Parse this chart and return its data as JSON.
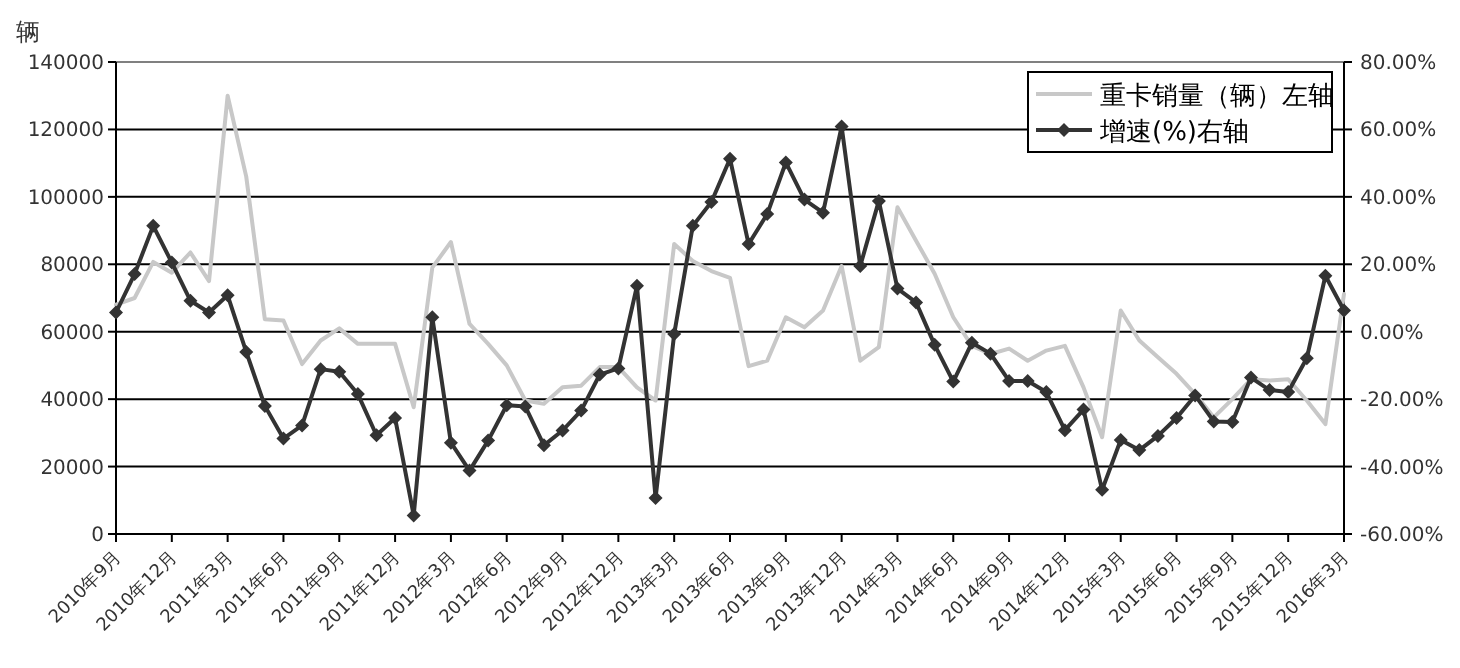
{
  "chart_data": {
    "type": "line",
    "ylabel": "辆",
    "categories": [
      "2010年9月",
      null,
      null,
      "2010年12月",
      null,
      null,
      "2011年3月",
      null,
      null,
      "2011年6月",
      null,
      null,
      "2011年9月",
      null,
      null,
      "2011年12月",
      null,
      null,
      "2012年3月",
      null,
      null,
      "2012年6月",
      null,
      null,
      "2012年9月",
      null,
      null,
      "2012年12月",
      null,
      null,
      "2013年3月",
      null,
      null,
      "2013年6月",
      null,
      null,
      "2013年9月",
      null,
      null,
      "2013年12月",
      null,
      null,
      "2014年3月",
      null,
      null,
      "2014年6月",
      null,
      null,
      "2014年9月",
      null,
      null,
      "2014年12月",
      null,
      null,
      "2015年3月",
      null,
      null,
      "2015年6月",
      null,
      null,
      "2015年9月",
      null,
      null,
      "2015年12月",
      null,
      null,
      "2016年3月"
    ],
    "series": [
      {
        "name": "重卡销量（辆）左轴",
        "color": "#c8c8c8",
        "marker": "none",
        "values": [
          68000,
          70000,
          80700,
          77500,
          83500,
          75000,
          130000,
          106000,
          63700,
          63300,
          50400,
          57400,
          61000,
          56400,
          56400,
          56400,
          37600,
          79000,
          86600,
          62300,
          56400,
          50000,
          39600,
          38600,
          43500,
          44000,
          49500,
          49500,
          43500,
          39600,
          86000,
          81000,
          78000,
          76000,
          49800,
          51400,
          64300,
          61300,
          66300,
          79500,
          51400,
          55400,
          96900,
          87000,
          77200,
          64300,
          55800,
          53400,
          55000,
          51400,
          54400,
          55800,
          43500,
          28700,
          66300,
          57400,
          52400,
          47500,
          41500,
          34600,
          40000,
          45900,
          45500,
          45900,
          39600,
          32600,
          71200
        ]
      },
      {
        "name": "增速(%)右轴",
        "color": "#333333",
        "marker": "diamond",
        "axis": "y2",
        "values": [
          5.7,
          17.1,
          31.4,
          20.5,
          9.2,
          5.7,
          10.8,
          -6,
          -22,
          -31.7,
          -27.8,
          -11.1,
          -11.9,
          -18.5,
          -30.7,
          -25.6,
          -54.5,
          4.3,
          -32.9,
          -41.2,
          -32.3,
          -21.8,
          -22.2,
          -33.7,
          -29.3,
          -23.4,
          -12.7,
          -10.9,
          13.6,
          -49.3,
          -0.7,
          31.4,
          38.5,
          51.3,
          26,
          34.9,
          50.2,
          39.2,
          35.3,
          60.9,
          19.5,
          38.8,
          12.8,
          8.7,
          -3.9,
          -14.8,
          -3.3,
          -6.5,
          -14.6,
          -14.6,
          -17.9,
          -29.2,
          -23.1,
          -46.9,
          -32.1,
          -35.1,
          -30.9,
          -25.6,
          -18.9,
          -26.6,
          -26.8,
          -13.6,
          -17.3,
          -17.9,
          -7.9,
          16.6,
          6.3
        ]
      }
    ],
    "ylim": [
      0,
      140000
    ],
    "yticks": [
      0,
      20000,
      40000,
      60000,
      80000,
      100000,
      120000,
      140000
    ],
    "y2lim": [
      -60,
      80
    ],
    "y2ticks": [
      {
        "value": -60,
        "label": "-60.00%"
      },
      {
        "value": -40,
        "label": "-40.00%"
      },
      {
        "value": -20,
        "label": "-20.00%"
      },
      {
        "value": 0,
        "label": "0.00%"
      },
      {
        "value": 20,
        "label": "20.00%"
      },
      {
        "value": 40,
        "label": "40.00%"
      },
      {
        "value": 60,
        "label": "60.00%"
      },
      {
        "value": 80,
        "label": "80.00%"
      }
    ],
    "grid": "y",
    "legend": "top right"
  }
}
